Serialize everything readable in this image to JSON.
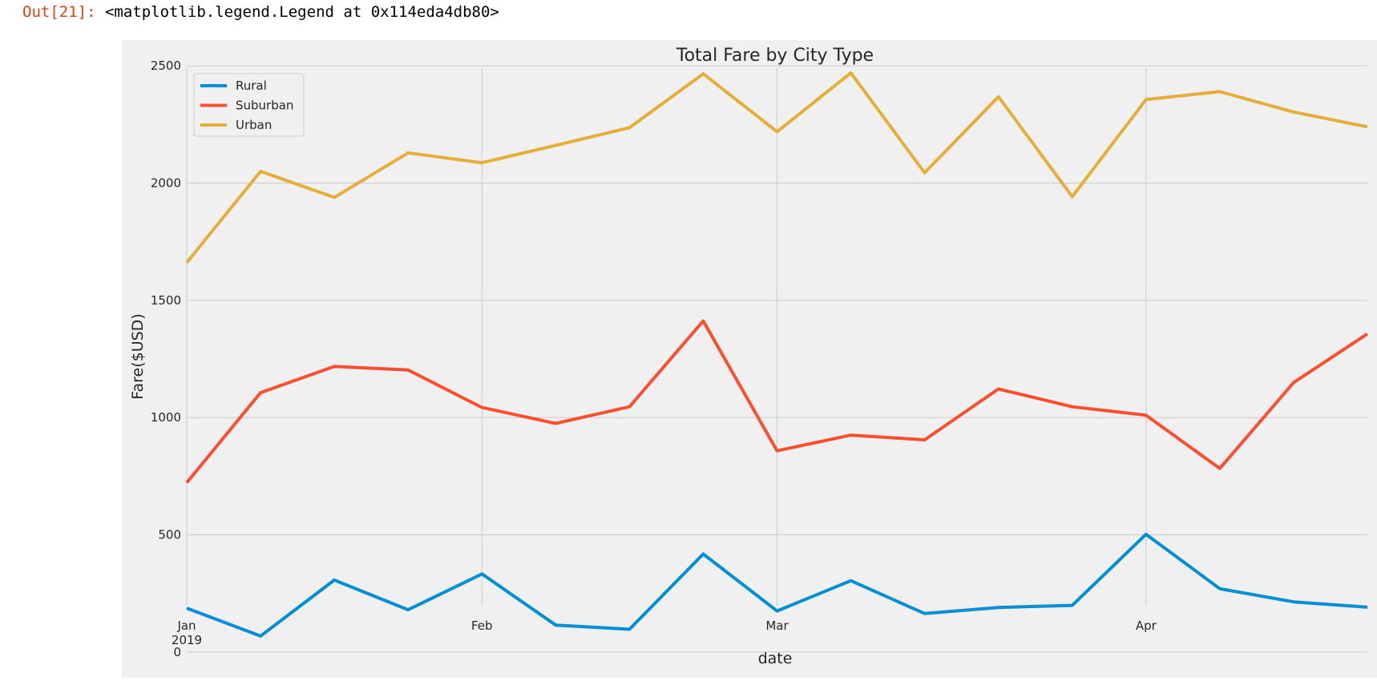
{
  "cell_output": {
    "prompt": "Out[21]:",
    "text": "<matplotlib.legend.Legend at 0x114eda4db80>"
  },
  "chart_data": {
    "type": "line",
    "title": "Total Fare by City Type",
    "xlabel": "date",
    "ylabel": "Fare($USD)",
    "x": [
      "2019-01-06",
      "2019-01-13",
      "2019-01-20",
      "2019-01-27",
      "2019-02-03",
      "2019-02-10",
      "2019-02-17",
      "2019-02-24",
      "2019-03-03",
      "2019-03-10",
      "2019-03-17",
      "2019-03-24",
      "2019-03-31",
      "2019-04-07",
      "2019-04-14",
      "2019-04-21",
      "2019-04-28"
    ],
    "x_range": [
      "2019-01-06",
      "2019-04-28"
    ],
    "x_ticks": [
      {
        "date": "2019-01-06",
        "label": "Jan",
        "sublabel": "2019"
      },
      {
        "date": "2019-02-03",
        "label": "Feb",
        "sublabel": ""
      },
      {
        "date": "2019-03-03",
        "label": "Mar",
        "sublabel": ""
      },
      {
        "date": "2019-04-07",
        "label": "Apr",
        "sublabel": ""
      }
    ],
    "ylim": [
      -110,
      2610
    ],
    "y_ticks": [
      0,
      500,
      1000,
      1500,
      2000,
      2500
    ],
    "grid": true,
    "legend_position": "top-left",
    "series": [
      {
        "name": "Rural",
        "color": "#008fd5",
        "values": [
          187,
          68,
          307,
          180,
          333,
          115,
          97,
          418,
          175,
          304,
          164,
          190,
          199,
          502,
          270,
          214,
          191
        ]
      },
      {
        "name": "Suburban",
        "color": "#fc4f30",
        "values": [
          722,
          1106,
          1218,
          1203,
          1043,
          975,
          1046,
          1412,
          858,
          925,
          905,
          1122,
          1046,
          1010,
          783,
          1149,
          1357
        ]
      },
      {
        "name": "Urban",
        "color": "#e5ae38",
        "values": [
          1661,
          2050,
          1939,
          2129,
          2087,
          2161,
          2236,
          2466,
          2219,
          2470,
          2044,
          2368,
          1942,
          2356,
          2390,
          2303,
          2240
        ]
      }
    ]
  }
}
